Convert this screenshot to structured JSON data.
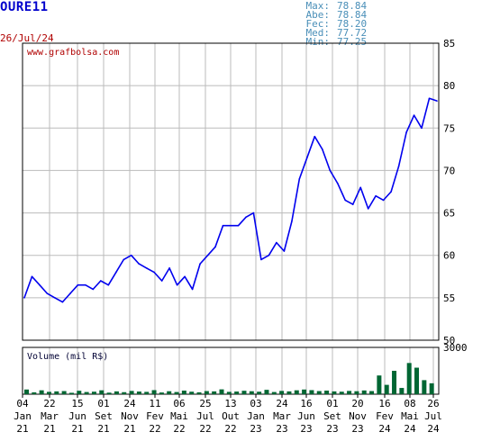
{
  "header": {
    "ticker": "OURE11",
    "date": "26/Jul/24",
    "stats": [
      {
        "key": "Max:",
        "value": "78.84"
      },
      {
        "key": "Abe:",
        "value": "78.84"
      },
      {
        "key": "Fec:",
        "value": "78.20"
      },
      {
        "key": "Med:",
        "value": "77.72"
      },
      {
        "key": "Min:",
        "value": "77.25"
      }
    ]
  },
  "watermark": "www.grafbolsa.com",
  "volume_label": "Volume (mil R$)",
  "colors": {
    "price_line": "#0000ee",
    "volume_bars": "#006633",
    "grid": "#bbbbbb",
    "date": "#b00000",
    "stats": "#4a8fb8"
  },
  "chart_data": [
    {
      "type": "line",
      "title": "",
      "ylim": [
        50,
        85
      ],
      "yticks": [
        85,
        80,
        75,
        70,
        65,
        60,
        55,
        50
      ],
      "x_ticks": [
        {
          "day": "04",
          "month": "Jan",
          "year": "21"
        },
        {
          "day": "22",
          "month": "Mar",
          "year": "21"
        },
        {
          "day": "15",
          "month": "Jun",
          "year": "21"
        },
        {
          "day": "01",
          "month": "Set",
          "year": "21"
        },
        {
          "day": "24",
          "month": "Nov",
          "year": "21"
        },
        {
          "day": "11",
          "month": "Fev",
          "year": "22"
        },
        {
          "day": "06",
          "month": "Mai",
          "year": "22"
        },
        {
          "day": "25",
          "month": "Jul",
          "year": "22"
        },
        {
          "day": "13",
          "month": "Out",
          "year": "22"
        },
        {
          "day": "03",
          "month": "Jan",
          "year": "23"
        },
        {
          "day": "24",
          "month": "Mar",
          "year": "23"
        },
        {
          "day": "16",
          "month": "Jun",
          "year": "23"
        },
        {
          "day": "01",
          "month": "Set",
          "year": "23"
        },
        {
          "day": "20",
          "month": "Nov",
          "year": "23"
        },
        {
          "day": "16",
          "month": "Fev",
          "year": "24"
        },
        {
          "day": "08",
          "month": "Mai",
          "year": "24"
        },
        {
          "day": "26",
          "month": "Jul",
          "year": "24"
        }
      ],
      "series": [
        {
          "values": [
            55.0,
            57.5,
            56.5,
            55.5,
            55.0,
            54.5,
            55.5,
            56.5,
            56.5,
            56.0,
            57.0,
            56.5,
            58.0,
            59.5,
            60.0,
            59.0,
            58.5,
            58.0,
            57.0,
            58.5,
            56.5,
            57.5,
            56.0,
            59.0,
            60.0,
            61.0,
            63.5,
            63.5,
            63.5,
            64.5,
            65.0,
            59.5,
            60.0,
            61.5,
            60.5,
            64.0,
            69.0,
            71.5,
            74.0,
            72.5,
            70.0,
            68.5,
            66.5,
            66.0,
            68.0,
            65.5,
            67.0,
            66.5,
            67.5,
            70.5,
            74.5,
            76.5,
            75.0,
            78.5,
            78.2
          ]
        }
      ]
    },
    {
      "type": "bar",
      "title": "",
      "ylabel": "Volume (mil R$)",
      "ylim": [
        0,
        3000
      ],
      "yticks": [
        3000
      ],
      "values": [
        300,
        120,
        250,
        150,
        180,
        200,
        90,
        220,
        140,
        160,
        250,
        100,
        180,
        130,
        210,
        170,
        150,
        260,
        110,
        190,
        140,
        230,
        160,
        120,
        200,
        180,
        310,
        150,
        170,
        220,
        190,
        160,
        280,
        140,
        210,
        180,
        250,
        300,
        260,
        200,
        230,
        180,
        160,
        210,
        190,
        240,
        200,
        1200,
        600,
        1500,
        400,
        2000,
        1700,
        900,
        700
      ]
    }
  ]
}
